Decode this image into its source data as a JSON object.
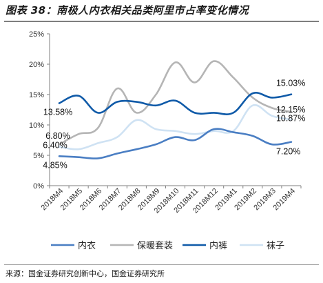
{
  "figure_title": "图表 38：南极人内衣相关品类阿里市占率变化情况",
  "source_note": "来源：国金证券研究创新中心，国金证券研究所",
  "chart_data": {
    "type": "line",
    "title": "",
    "xlabel": "",
    "ylabel": "",
    "categories": [
      "2018M4",
      "2018M5",
      "2018M6",
      "2018M7",
      "2018M8",
      "2018M9",
      "2018M10",
      "2018M11",
      "2018M12",
      "2019M1",
      "2019M2",
      "2019M3",
      "2019M4"
    ],
    "ylim": [
      0,
      25
    ],
    "yticks": [
      "0%",
      "5%",
      "10%",
      "15%",
      "20%",
      "25%"
    ],
    "legend_position": "bottom",
    "series": [
      {
        "name": "内衣",
        "color": "#4a7ec3",
        "values": [
          4.85,
          4.7,
          4.5,
          5.3,
          6.0,
          6.8,
          8.0,
          7.5,
          9.3,
          8.8,
          8.2,
          6.8,
          7.2
        ]
      },
      {
        "name": "保暖套装",
        "color": "#b5b5b5",
        "values": [
          6.8,
          8.5,
          9.5,
          16.0,
          12.0,
          15.0,
          20.3,
          17.0,
          20.5,
          17.8,
          14.5,
          12.8,
          12.15
        ]
      },
      {
        "name": "内裤",
        "color": "#0f5aa8",
        "values": [
          13.58,
          14.8,
          12.0,
          13.8,
          13.8,
          13.2,
          14.0,
          12.0,
          12.0,
          12.0,
          15.2,
          14.5,
          15.03
        ]
      },
      {
        "name": "袜子",
        "color": "#cfe2f3",
        "values": [
          6.4,
          6.0,
          7.0,
          8.0,
          10.8,
          9.3,
          9.0,
          8.5,
          9.0,
          9.0,
          13.2,
          11.5,
          10.87
        ]
      }
    ],
    "annotations": [
      {
        "text": "13.58%",
        "series": "内裤",
        "index": 0
      },
      {
        "text": "6.80%",
        "series": "保暖套装",
        "index": 0
      },
      {
        "text": "6.40%",
        "series": "袜子",
        "index": 0
      },
      {
        "text": "4.85%",
        "series": "内衣",
        "index": 0
      },
      {
        "text": "15.03%",
        "series": "内裤",
        "index": 12
      },
      {
        "text": "12.15%",
        "series": "保暖套装",
        "index": 12
      },
      {
        "text": "10.87%",
        "series": "袜子",
        "index": 12
      },
      {
        "text": "7.20%",
        "series": "内衣",
        "index": 12
      }
    ]
  }
}
